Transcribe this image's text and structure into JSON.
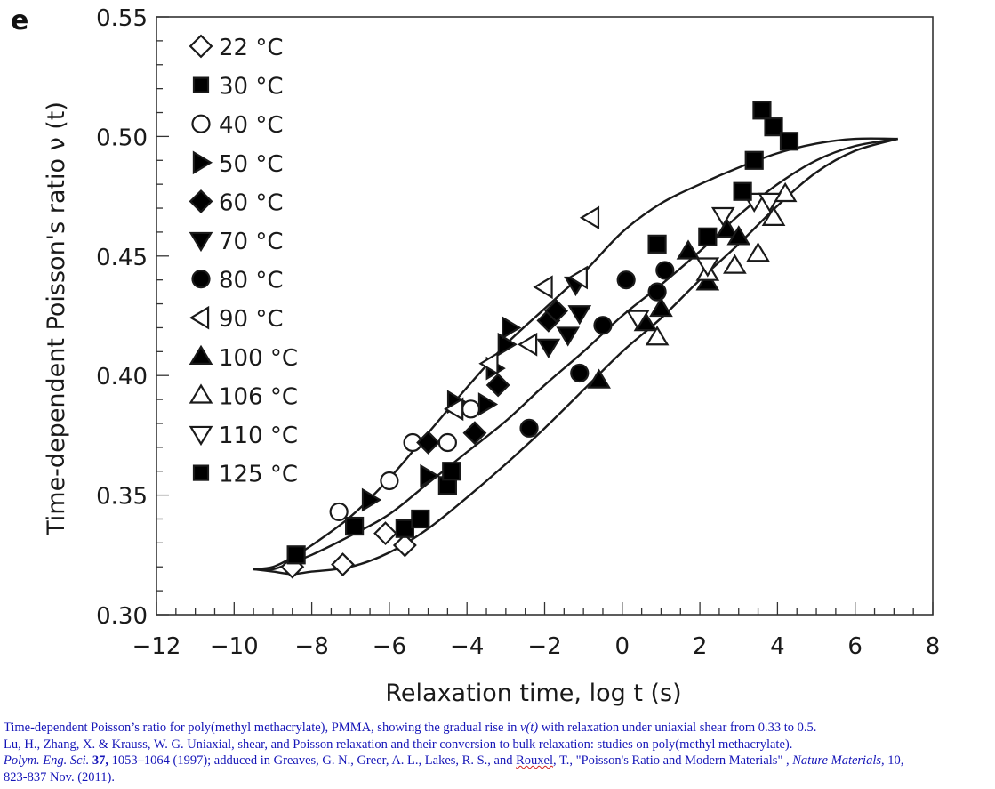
{
  "chart_data": {
    "type": "scatter",
    "panel_label": "e",
    "title": "",
    "xlabel": "Relaxation time, log t (s)",
    "ylabel": "Time-dependent Poisson's ratio ν (t)",
    "xlim": [
      -12,
      8
    ],
    "ylim": [
      0.3,
      0.55
    ],
    "x_ticks": [
      -12,
      -10,
      -8,
      -6,
      -4,
      -2,
      0,
      2,
      4,
      6,
      8
    ],
    "x_tick_labels": [
      "−12",
      "−10",
      "−8",
      "−6",
      "−4",
      "−2",
      "0",
      "2",
      "4",
      "6",
      "8"
    ],
    "x_minor_step": 0.5,
    "y_ticks": [
      0.3,
      0.35,
      0.4,
      0.45,
      0.5,
      0.55
    ],
    "y_tick_labels": [
      "0.30",
      "0.35",
      "0.40",
      "0.45",
      "0.50",
      "0.55"
    ],
    "y_minor_step": 0.01,
    "grid": false,
    "legend_position": "top-left",
    "series": [
      {
        "name": "22 °C",
        "label": "22 °C",
        "marker": "diamond",
        "filled": false,
        "points": [
          [
            -8.5,
            0.32
          ],
          [
            -7.2,
            0.321
          ],
          [
            -6.1,
            0.334
          ],
          [
            -5.6,
            0.329
          ]
        ]
      },
      {
        "name": "30 °C",
        "label": "30 °C",
        "marker": "square",
        "filled": true,
        "points": [
          [
            -8.4,
            0.325
          ],
          [
            -6.9,
            0.337
          ],
          [
            -5.6,
            0.336
          ],
          [
            -5.2,
            0.34
          ]
        ]
      },
      {
        "name": "40 °C",
        "label": "40 °C",
        "marker": "circle",
        "filled": false,
        "points": [
          [
            -7.3,
            0.343
          ],
          [
            -6.0,
            0.356
          ],
          [
            -5.4,
            0.372
          ],
          [
            -4.5,
            0.372
          ],
          [
            -3.9,
            0.386
          ]
        ]
      },
      {
        "name": "50 °C",
        "label": "50 °C",
        "marker": "triangle-right",
        "filled": true,
        "points": [
          [
            -6.5,
            0.348
          ],
          [
            -5.0,
            0.358
          ],
          [
            -4.3,
            0.389
          ],
          [
            -3.5,
            0.388
          ],
          [
            -3.3,
            0.403
          ],
          [
            -3.0,
            0.413
          ],
          [
            -2.9,
            0.42
          ]
        ]
      },
      {
        "name": "60 °C",
        "label": "60 °C",
        "marker": "diamond",
        "filled": true,
        "points": [
          [
            -5.0,
            0.372
          ],
          [
            -3.8,
            0.376
          ],
          [
            -3.2,
            0.396
          ],
          [
            -1.9,
            0.423
          ],
          [
            -1.7,
            0.427
          ]
        ]
      },
      {
        "name": "70 °C",
        "label": "70 °C",
        "marker": "triangle-down",
        "filled": true,
        "points": [
          [
            -1.9,
            0.412
          ],
          [
            -1.4,
            0.417
          ],
          [
            -1.1,
            0.426
          ],
          [
            -1.2,
            0.438
          ]
        ]
      },
      {
        "name": "80 °C",
        "label": "80 °C",
        "marker": "circle",
        "filled": true,
        "points": [
          [
            -2.4,
            0.378
          ],
          [
            -1.1,
            0.401
          ],
          [
            -0.5,
            0.421
          ],
          [
            0.1,
            0.44
          ],
          [
            0.9,
            0.435
          ],
          [
            1.1,
            0.444
          ]
        ]
      },
      {
        "name": "90 °C",
        "label": "90 °C",
        "marker": "triangle-left",
        "filled": false,
        "points": [
          [
            -4.3,
            0.386
          ],
          [
            -3.4,
            0.405
          ],
          [
            -2.4,
            0.413
          ],
          [
            -2.0,
            0.437
          ],
          [
            -1.1,
            0.441
          ],
          [
            -0.8,
            0.466
          ]
        ]
      },
      {
        "name": "100 °C",
        "label": "100 °C",
        "marker": "triangle-up",
        "filled": true,
        "points": [
          [
            -0.6,
            0.398
          ],
          [
            0.6,
            0.422
          ],
          [
            1.0,
            0.428
          ],
          [
            1.7,
            0.452
          ],
          [
            2.2,
            0.439
          ],
          [
            2.7,
            0.461
          ],
          [
            3.0,
            0.458
          ]
        ]
      },
      {
        "name": "106 °C",
        "label": "106 °C",
        "marker": "triangle-up",
        "filled": false,
        "points": [
          [
            0.9,
            0.416
          ],
          [
            2.2,
            0.443
          ],
          [
            2.9,
            0.446
          ],
          [
            3.5,
            0.451
          ],
          [
            3.9,
            0.466
          ],
          [
            4.2,
            0.476
          ]
        ]
      },
      {
        "name": "110 °C",
        "label": "110 °C",
        "marker": "triangle-down",
        "filled": false,
        "points": [
          [
            0.4,
            0.424
          ],
          [
            2.2,
            0.446
          ],
          [
            2.6,
            0.467
          ],
          [
            3.4,
            0.473
          ],
          [
            3.8,
            0.473
          ]
        ]
      },
      {
        "name": "125 °C",
        "label": "125 °C",
        "marker": "square",
        "filled": true,
        "points": [
          [
            -4.5,
            0.354
          ],
          [
            -4.4,
            0.36
          ],
          [
            0.9,
            0.455
          ],
          [
            2.2,
            0.458
          ],
          [
            3.1,
            0.477
          ],
          [
            3.4,
            0.49
          ],
          [
            3.6,
            0.511
          ],
          [
            3.9,
            0.504
          ],
          [
            4.3,
            0.498
          ]
        ]
      }
    ],
    "curves": [
      {
        "name": "upper-fit-curve",
        "points": [
          [
            -9.5,
            0.319
          ],
          [
            -9.0,
            0.32
          ],
          [
            -8.5,
            0.324
          ],
          [
            -8.0,
            0.329
          ],
          [
            -7.0,
            0.341
          ],
          [
            -6.0,
            0.357
          ],
          [
            -5.0,
            0.376
          ],
          [
            -4.0,
            0.395
          ],
          [
            -3.0,
            0.413
          ],
          [
            -2.0,
            0.428
          ],
          [
            -1.0,
            0.443
          ],
          [
            0.0,
            0.46
          ],
          [
            1.0,
            0.472
          ],
          [
            2.0,
            0.48
          ],
          [
            3.0,
            0.487
          ],
          [
            4.0,
            0.493
          ],
          [
            5.0,
            0.497
          ],
          [
            6.0,
            0.499
          ],
          [
            7.1,
            0.499
          ]
        ]
      },
      {
        "name": "middle-fit-curve",
        "points": [
          [
            -9.5,
            0.319
          ],
          [
            -9.0,
            0.319
          ],
          [
            -8.5,
            0.322
          ],
          [
            -8.0,
            0.325
          ],
          [
            -7.0,
            0.333
          ],
          [
            -6.0,
            0.342
          ],
          [
            -5.0,
            0.355
          ],
          [
            -4.0,
            0.368
          ],
          [
            -3.0,
            0.381
          ],
          [
            -2.0,
            0.396
          ],
          [
            -1.0,
            0.41
          ],
          [
            0.0,
            0.425
          ],
          [
            1.0,
            0.438
          ],
          [
            2.0,
            0.452
          ],
          [
            3.0,
            0.467
          ],
          [
            4.0,
            0.48
          ],
          [
            5.0,
            0.49
          ],
          [
            6.0,
            0.496
          ],
          [
            7.1,
            0.499
          ]
        ]
      },
      {
        "name": "lower-fit-curve",
        "points": [
          [
            -9.5,
            0.319
          ],
          [
            -9.0,
            0.318
          ],
          [
            -8.5,
            0.317
          ],
          [
            -8.0,
            0.318
          ],
          [
            -7.0,
            0.32
          ],
          [
            -6.0,
            0.326
          ],
          [
            -5.0,
            0.336
          ],
          [
            -4.0,
            0.349
          ],
          [
            -3.0,
            0.363
          ],
          [
            -2.0,
            0.378
          ],
          [
            -1.0,
            0.394
          ],
          [
            0.0,
            0.41
          ],
          [
            1.0,
            0.424
          ],
          [
            2.0,
            0.44
          ],
          [
            3.0,
            0.455
          ],
          [
            4.0,
            0.471
          ],
          [
            5.0,
            0.485
          ],
          [
            6.0,
            0.494
          ],
          [
            7.1,
            0.499
          ]
        ]
      }
    ]
  },
  "caption": {
    "line1": "Time-dependent Poisson’s ratio for poly(methyl methacrylate), PMMA, showing the gradual rise in ",
    "line1_nu": "ν(t)",
    "line1_end": " with relaxation under uniaxial shear from 0.33 to 0.5.",
    "line2": "Lu, H., Zhang, X. & Krauss, W. G. Uniaxial, shear, and Poisson relaxation and their conversion to bulk relaxation: studies on poly(methyl methacrylate).",
    "line3_journal": "Polym. Eng. Sci.",
    "line3_volume": " 37,",
    "line3_rest": " 1053–1064 (1997); adduced in Greaves, G. N., Greer, A. L., Lakes, R. S., and ",
    "line3_author": "Rouxel",
    "line3_after": ", T., \"Poisson's Ratio and Modern Materials\" , ",
    "line3_journal2": "Nature Materials",
    "line3_end": ", 10,",
    "line4": "823-837 Nov. (2011)."
  }
}
